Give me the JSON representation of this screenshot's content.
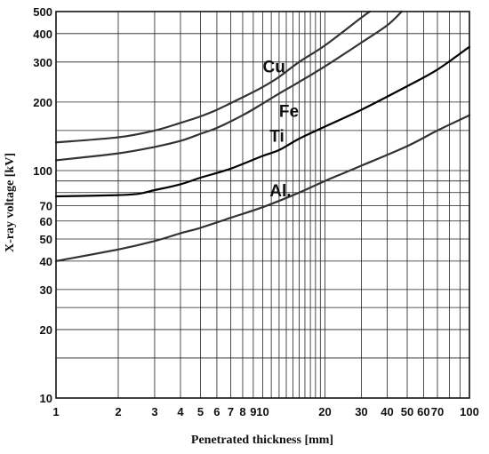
{
  "chart_data": {
    "type": "line",
    "title": "",
    "xlabel": "Penetrated thickness [mm]",
    "ylabel": "X-ray voltage [kV]",
    "xscale": "log",
    "yscale": "log",
    "xlim": [
      1,
      100
    ],
    "ylim": [
      10,
      500
    ],
    "grid": true,
    "legend": "none",
    "x_ticks": [
      1,
      2,
      3,
      4,
      5,
      6,
      7,
      8,
      9,
      10,
      20,
      30,
      40,
      50,
      60,
      70,
      100
    ],
    "x_tick_labels": [
      "1",
      "2",
      "3",
      "4",
      "5",
      "6",
      "7",
      "8",
      "9",
      "10",
      "20",
      "30",
      "40",
      "50",
      "60",
      "70",
      "100"
    ],
    "y_ticks": [
      10,
      20,
      30,
      40,
      50,
      60,
      70,
      100,
      200,
      300,
      400,
      500
    ],
    "y_tick_labels": [
      "10",
      "20",
      "30",
      "40",
      "50",
      "60",
      "70",
      "100",
      "200",
      "300",
      "400",
      "500"
    ],
    "series": [
      {
        "name": "Cu",
        "color": "#333333",
        "points": [
          [
            1,
            133
          ],
          [
            2,
            140
          ],
          [
            3,
            150
          ],
          [
            4,
            162
          ],
          [
            5,
            173
          ],
          [
            6,
            185
          ],
          [
            8,
            210
          ],
          [
            10,
            233
          ],
          [
            12,
            258
          ],
          [
            15,
            300
          ],
          [
            20,
            355
          ],
          [
            30,
            470
          ],
          [
            33,
            500
          ]
        ]
      },
      {
        "name": "Fe",
        "color": "#333333",
        "points": [
          [
            1,
            111
          ],
          [
            2,
            119
          ],
          [
            3,
            127
          ],
          [
            4,
            135
          ],
          [
            5,
            145
          ],
          [
            6,
            154
          ],
          [
            8,
            175
          ],
          [
            10,
            197
          ],
          [
            12,
            218
          ],
          [
            15,
            245
          ],
          [
            20,
            287
          ],
          [
            30,
            365
          ],
          [
            40,
            435
          ],
          [
            47,
            500
          ]
        ]
      },
      {
        "name": "Ti",
        "color": "#000000",
        "points": [
          [
            1,
            77
          ],
          [
            2,
            78
          ],
          [
            2.5,
            79
          ],
          [
            3,
            82
          ],
          [
            4,
            87
          ],
          [
            5,
            93
          ],
          [
            7,
            102
          ],
          [
            10,
            116
          ],
          [
            12,
            123
          ],
          [
            15,
            138
          ],
          [
            20,
            156
          ],
          [
            30,
            185
          ],
          [
            50,
            235
          ],
          [
            70,
            278
          ],
          [
            100,
            350
          ]
        ]
      },
      {
        "name": "Al.",
        "color": "#333333",
        "points": [
          [
            1,
            40
          ],
          [
            2,
            45
          ],
          [
            3,
            49
          ],
          [
            4,
            53
          ],
          [
            5,
            56
          ],
          [
            7,
            62
          ],
          [
            10,
            69
          ],
          [
            15,
            80
          ],
          [
            20,
            90
          ],
          [
            30,
            105
          ],
          [
            50,
            128
          ],
          [
            70,
            150
          ],
          [
            100,
            175
          ]
        ]
      }
    ],
    "annotations": [
      {
        "text": "Cu",
        "x": 10,
        "y": 270
      },
      {
        "text": "Fe",
        "x": 12,
        "y": 172
      },
      {
        "text": "Ti",
        "x": 10.8,
        "y": 134
      },
      {
        "text": "Al.",
        "x": 10.8,
        "y": 77
      }
    ]
  }
}
